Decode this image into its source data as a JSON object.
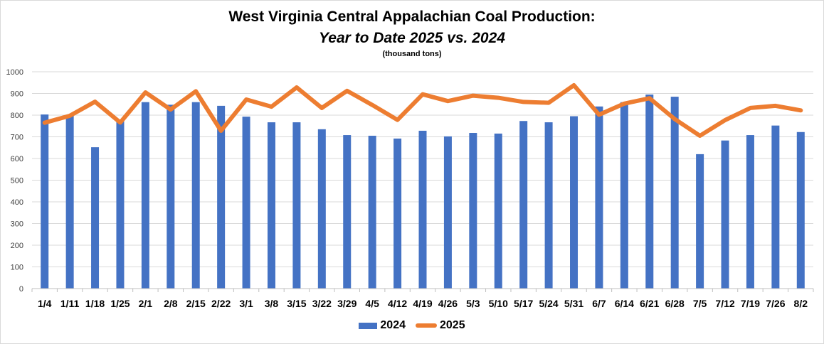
{
  "chart_data": {
    "type": "bar+line",
    "title": "West Virginia Central Appalachian Coal Production:",
    "subtitle": "Year to Date 2025 vs. 2024",
    "units": "(thousand tons)",
    "ylim": [
      0,
      1000
    ],
    "yticks": [
      0,
      100,
      200,
      300,
      400,
      500,
      600,
      700,
      800,
      900,
      1000
    ],
    "grid": true,
    "legend_position": "bottom",
    "categories": [
      "1/4",
      "1/11",
      "1/18",
      "1/25",
      "2/1",
      "2/8",
      "2/15",
      "2/22",
      "3/1",
      "3/8",
      "3/15",
      "3/22",
      "3/29",
      "4/5",
      "4/12",
      "4/19",
      "4/26",
      "5/3",
      "5/10",
      "5/17",
      "5/24",
      "5/31",
      "6/7",
      "6/14",
      "6/21",
      "6/28",
      "7/5",
      "7/12",
      "7/19",
      "7/26",
      "8/2"
    ],
    "series": [
      {
        "name": "2024",
        "kind": "bar",
        "color": "#4472c4",
        "values": [
          803,
          802,
          652,
          775,
          860,
          848,
          860,
          843,
          793,
          767,
          767,
          735,
          708,
          705,
          692,
          728,
          702,
          718,
          715,
          773,
          767,
          795,
          840,
          860,
          895,
          885,
          620,
          683,
          708,
          752,
          722
        ]
      },
      {
        "name": "2025",
        "kind": "line",
        "color": "#ed7d31",
        "values": [
          765,
          797,
          862,
          766,
          905,
          826,
          910,
          728,
          872,
          839,
          928,
          833,
          912,
          847,
          778,
          896,
          865,
          890,
          880,
          861,
          857,
          938,
          802,
          853,
          878,
          782,
          705,
          777,
          833,
          843,
          822
        ]
      }
    ]
  }
}
